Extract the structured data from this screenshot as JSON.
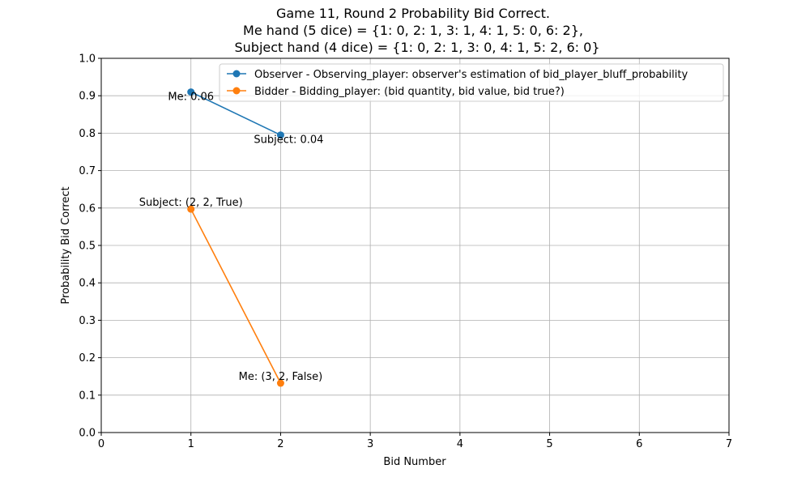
{
  "chart_data": {
    "type": "line",
    "title_lines": [
      "Game 11, Round 2 Probability Bid Correct.",
      "Me hand (5 dice) = {1: 0, 2: 1, 3: 1, 4: 1, 5: 0, 6: 2},",
      "Subject hand (4 dice) = {1: 0, 2: 1, 3: 0, 4: 1, 5: 2, 6: 0}"
    ],
    "xlabel": "Bid Number",
    "ylabel": "Probability Bid Correct",
    "xlim": [
      0,
      7
    ],
    "ylim": [
      0,
      1.0
    ],
    "xticks": [
      0,
      1,
      2,
      3,
      4,
      5,
      6,
      7
    ],
    "xtick_labels": [
      "0",
      "1",
      "2",
      "3",
      "4",
      "5",
      "6",
      "7"
    ],
    "yticks": [
      0,
      0.1,
      0.2,
      0.3,
      0.4,
      0.5,
      0.6,
      0.7,
      0.8,
      0.9,
      1.0
    ],
    "ytick_labels": [
      "0.0",
      "0.1",
      "0.2",
      "0.3",
      "0.4",
      "0.5",
      "0.6",
      "0.7",
      "0.8",
      "0.9",
      "1.0"
    ],
    "grid": true,
    "legend_position": "top-right",
    "series": [
      {
        "name": "Observer - Observing_player: observer's estimation of bid_player_bluff_probability",
        "color": "#1f77b4",
        "x": [
          1,
          2
        ],
        "y": [
          0.91,
          0.795
        ],
        "annotations": [
          "Me: 0.06",
          "Subject: 0.04"
        ]
      },
      {
        "name": "Bidder -  Bidding_player: (bid quantity, bid value, bid true?)",
        "color": "#ff7f0e",
        "x": [
          1,
          2
        ],
        "y": [
          0.597,
          0.132
        ],
        "annotations": [
          "Subject: (2, 2, True)",
          "Me: (3, 2, False)"
        ]
      }
    ]
  }
}
